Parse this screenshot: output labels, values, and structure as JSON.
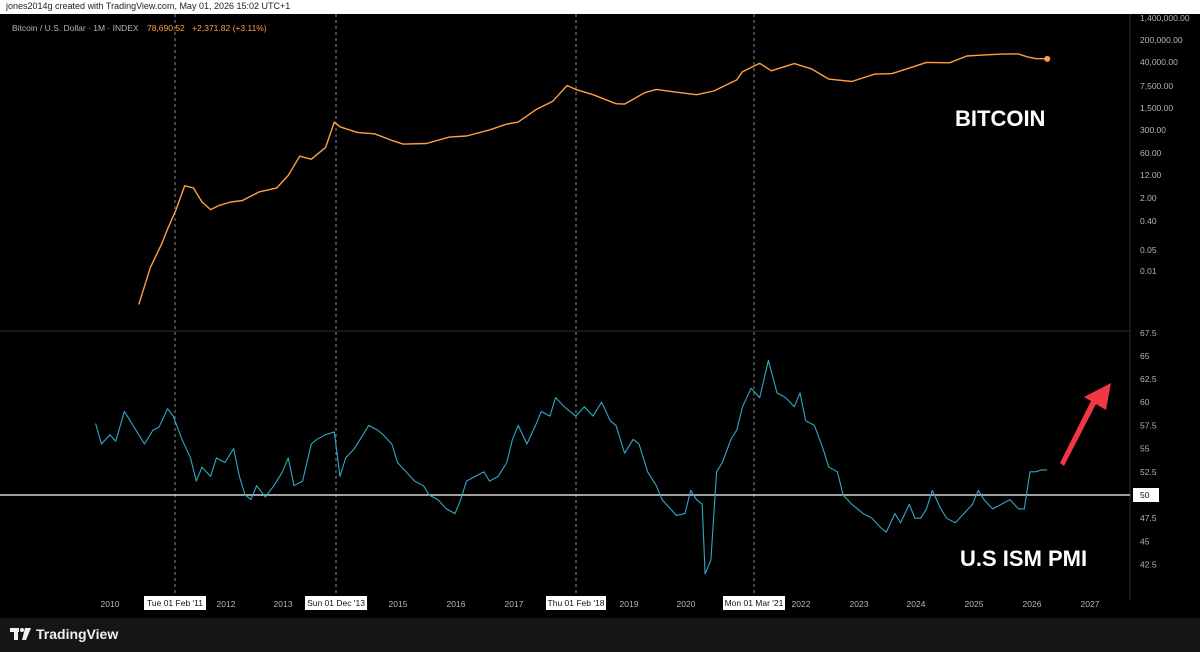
{
  "topbar": {
    "text": "jones2014g created with TradingView.com, May 01, 2026 15:02 UTC+1"
  },
  "header": {
    "symbol": "Bitcoin / U.S. Dollar · 1M · INDEX",
    "price": "78,690.52",
    "change": "+2,371.82 (+3.11%)"
  },
  "labels": {
    "bitcoin": "BITCOIN",
    "pmi": "U.S ISM PMI"
  },
  "footer": {
    "brand": "TradingView"
  },
  "colors": {
    "btc_line": "#ff9f43",
    "pmi_line": "#2fa8c8",
    "arrow": "#f23645",
    "reference_line": "#ffffff"
  },
  "chart_data": [
    {
      "type": "line",
      "title": "Bitcoin / U.S. Dollar · 1M · INDEX",
      "scale": "log",
      "y_tick_labels": [
        "1,400,000.00",
        "200,000.00",
        "40,000.00",
        "7,500.00",
        "1,500.00",
        "300.00",
        "60.00",
        "12.00",
        "2.00",
        "0.40",
        "0.05",
        "0.01"
      ],
      "series": [
        {
          "x": [
            2010.5,
            2010.7,
            2010.9,
            2011.0,
            2011.15,
            2011.3,
            2011.45,
            2011.6,
            2011.75,
            2011.9,
            2012.1,
            2012.3,
            2012.6,
            2012.9,
            2013.1,
            2013.3,
            2013.5,
            2013.75,
            2013.9,
            2014.0,
            2014.3,
            2014.6,
            2014.9,
            2015.1,
            2015.5,
            2015.9,
            2016.2,
            2016.6,
            2016.9,
            2017.1,
            2017.4,
            2017.7,
            2017.95,
            2018.1,
            2018.4,
            2018.8,
            2018.95,
            2019.3,
            2019.5,
            2019.8,
            2020.2,
            2020.5,
            2020.9,
            2021.0,
            2021.3,
            2021.5,
            2021.9,
            2022.2,
            2022.5,
            2022.9,
            2023.3,
            2023.6,
            2023.9,
            2024.2,
            2024.6,
            2024.9,
            2025.1,
            2025.5,
            2025.8,
            2025.95,
            2026.1,
            2026.3
          ],
          "y": [
            0.005,
            0.06,
            0.3,
            0.8,
            3,
            15,
            13,
            5,
            3,
            4,
            5,
            5.5,
            10,
            13,
            30,
            110,
            90,
            200,
            1100,
            800,
            550,
            500,
            320,
            250,
            260,
            400,
            430,
            650,
            960,
            1100,
            2500,
            4500,
            13000,
            10000,
            7000,
            3800,
            3700,
            8000,
            10000,
            8500,
            7000,
            9000,
            19000,
            33000,
            58000,
            35000,
            57000,
            40000,
            20000,
            17000,
            28000,
            29000,
            42000,
            62000,
            60000,
            95000,
            100000,
            108000,
            110000,
            90000,
            80000,
            78690.52
          ]
        }
      ]
    },
    {
      "type": "line",
      "title": "U.S ISM PMI",
      "ylim": [
        40,
        67.5
      ],
      "y_ticks": [
        42.5,
        45,
        47.5,
        50,
        52.5,
        55,
        57.5,
        60,
        62.5,
        65
      ],
      "reference_line": 50,
      "x_tick_labels": [
        "2010",
        "2012",
        "2013",
        "2015",
        "2016",
        "2017",
        "2019",
        "2020",
        "2022",
        "2023",
        "2024",
        "2025",
        "2026",
        "2027"
      ],
      "highlighted_dates": [
        "Tue 01 Feb '11",
        "Sun 01 Dec '13",
        "Thu 01 Feb '18",
        "Mon 01 Mar '21"
      ],
      "series": [
        {
          "x": [
            2009.75,
            2009.85,
            2010.0,
            2010.1,
            2010.25,
            2010.4,
            2010.6,
            2010.75,
            2010.85,
            2011.0,
            2011.1,
            2011.25,
            2011.4,
            2011.5,
            2011.6,
            2011.75,
            2011.85,
            2012.0,
            2012.15,
            2012.25,
            2012.35,
            2012.45,
            2012.55,
            2012.7,
            2012.85,
            2013.0,
            2013.1,
            2013.2,
            2013.35,
            2013.5,
            2013.6,
            2013.75,
            2013.9,
            2014.0,
            2014.1,
            2014.25,
            2014.4,
            2014.5,
            2014.65,
            2014.75,
            2014.9,
            2015.0,
            2015.15,
            2015.3,
            2015.45,
            2015.55,
            2015.7,
            2015.85,
            2016.0,
            2016.1,
            2016.2,
            2016.35,
            2016.5,
            2016.6,
            2016.75,
            2016.9,
            2017.0,
            2017.1,
            2017.25,
            2017.4,
            2017.5,
            2017.65,
            2017.75,
            2017.9,
            2018.0,
            2018.1,
            2018.25,
            2018.4,
            2018.55,
            2018.7,
            2018.8,
            2018.95,
            2019.1,
            2019.2,
            2019.35,
            2019.5,
            2019.6,
            2019.75,
            2019.85,
            2020.0,
            2020.1,
            2020.2,
            2020.3,
            2020.35,
            2020.45,
            2020.55,
            2020.65,
            2020.8,
            2020.9,
            2021.0,
            2021.15,
            2021.3,
            2021.45,
            2021.6,
            2021.75,
            2021.9,
            2022.0,
            2022.1,
            2022.25,
            2022.4,
            2022.5,
            2022.65,
            2022.75,
            2022.9,
            2023.0,
            2023.1,
            2023.25,
            2023.4,
            2023.5,
            2023.65,
            2023.75,
            2023.9,
            2024.0,
            2024.1,
            2024.2,
            2024.3,
            2024.45,
            2024.55,
            2024.7,
            2024.85,
            2025.0,
            2025.1,
            2025.2,
            2025.35,
            2025.5,
            2025.65,
            2025.8,
            2025.9,
            2026.0,
            2026.1,
            2026.2,
            2026.3
          ],
          "y": [
            57.7,
            55.5,
            56.5,
            55.8,
            59.0,
            57.5,
            55.5,
            57.0,
            57.3,
            59.3,
            58.5,
            56.0,
            54.0,
            51.5,
            53.0,
            52.0,
            54.0,
            53.5,
            55.0,
            52.0,
            50.0,
            49.5,
            51.0,
            49.8,
            51.0,
            52.5,
            54.0,
            51.0,
            51.5,
            55.5,
            56.0,
            56.5,
            56.8,
            52.0,
            54.0,
            55.0,
            56.5,
            57.5,
            57.0,
            56.5,
            55.5,
            53.5,
            52.5,
            51.5,
            51.0,
            50.0,
            49.5,
            48.5,
            48.0,
            49.5,
            51.5,
            52.0,
            52.5,
            51.5,
            52.0,
            53.5,
            56.0,
            57.5,
            55.5,
            57.5,
            59.0,
            58.5,
            60.5,
            59.5,
            59.0,
            58.5,
            59.5,
            58.5,
            60.0,
            58.0,
            57.5,
            54.5,
            56.0,
            55.5,
            52.5,
            51.0,
            49.5,
            48.5,
            47.8,
            48.0,
            50.5,
            49.5,
            49.0,
            41.5,
            43.0,
            52.5,
            53.5,
            56.0,
            57.0,
            59.5,
            61.5,
            60.5,
            64.5,
            61.0,
            60.5,
            59.5,
            61.0,
            58.0,
            57.5,
            55.0,
            53.0,
            52.5,
            50.0,
            49.0,
            48.5,
            48.0,
            47.5,
            46.5,
            46.0,
            48.0,
            47.0,
            49.0,
            47.5,
            47.5,
            48.5,
            50.5,
            48.5,
            47.5,
            47.0,
            48.0,
            49.0,
            50.5,
            49.5,
            48.5,
            49.0,
            49.5,
            48.5,
            48.5,
            52.5,
            52.5,
            52.7,
            52.7
          ]
        }
      ]
    }
  ]
}
